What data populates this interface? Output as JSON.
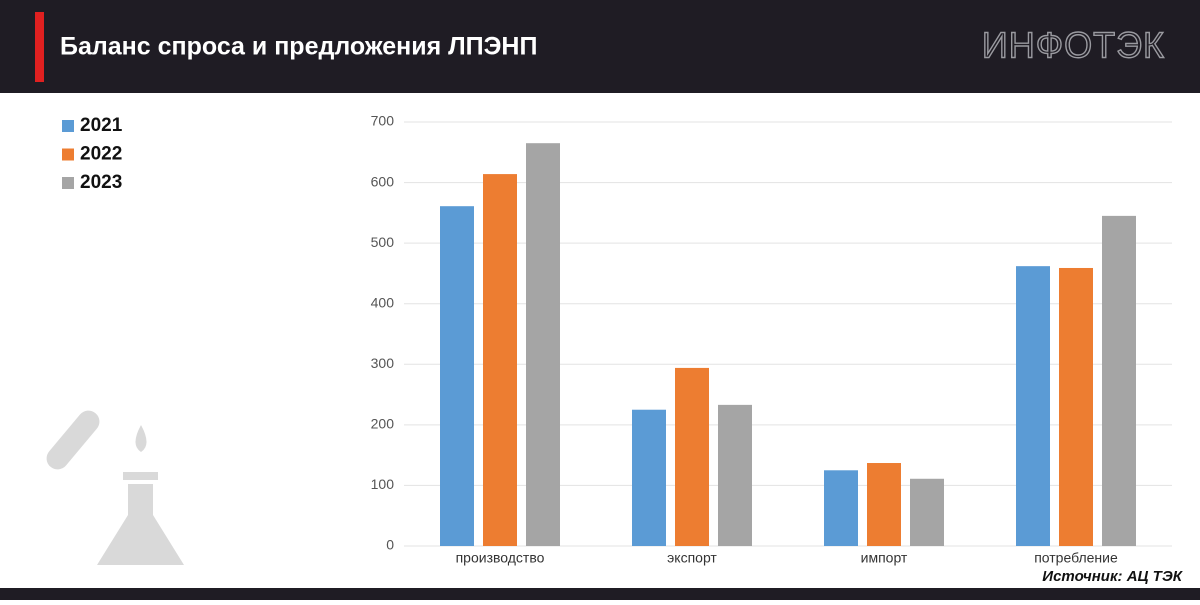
{
  "header": {
    "title": "Баланс спроса и предложения ЛПЭНП",
    "logo": "ИНФОТЭК"
  },
  "source": "Источник: АЦ ТЭК",
  "chart_data": {
    "type": "bar",
    "categories": [
      "производство",
      "экспорт",
      "импорт",
      "потребление"
    ],
    "series": [
      {
        "name": "2021",
        "color": "#5b9bd5",
        "values": [
          561,
          225,
          125,
          462
        ]
      },
      {
        "name": "2022",
        "color": "#ed7d31",
        "values": [
          614,
          294,
          137,
          459
        ]
      },
      {
        "name": "2023",
        "color": "#a5a5a5",
        "values": [
          665,
          233,
          111,
          545
        ]
      }
    ],
    "ylim": [
      0,
      700
    ],
    "yticks": [
      0,
      100,
      200,
      300,
      400,
      500,
      600,
      700
    ],
    "grid": true,
    "legend": "top-left"
  }
}
